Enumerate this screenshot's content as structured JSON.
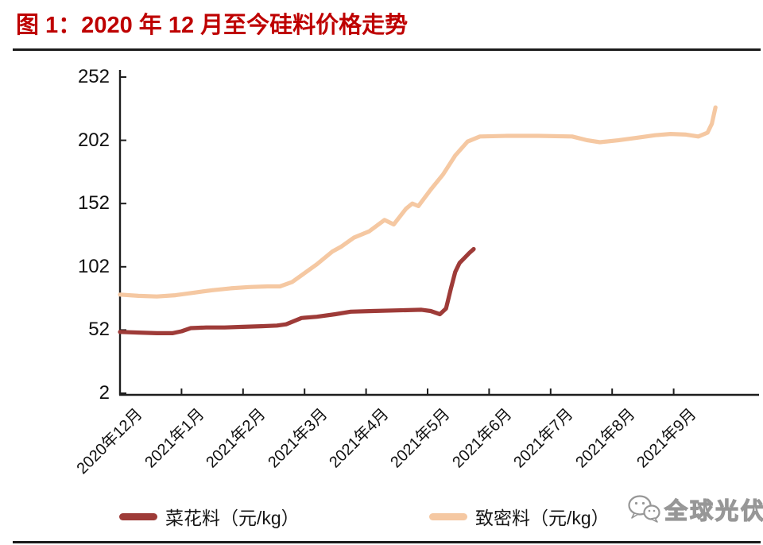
{
  "title": "图 1：2020 年 12 月至今硅料价格走势",
  "colors": {
    "title": "#BE0000",
    "axis": "#1d1d1d",
    "cauliflower_line": "#9E3B38",
    "dense_line": "#F5C8A2",
    "watermark_outline": "#979797"
  },
  "watermark": {
    "text": "全球光伏"
  },
  "chart_data": {
    "type": "line",
    "title": "2020年12月至今硅料价格走势",
    "xlabel": "",
    "ylabel": "元/kg",
    "ylim": [
      2,
      252
    ],
    "y_ticks": [
      2,
      52,
      102,
      152,
      202,
      252
    ],
    "grid": false,
    "legend_position": "bottom",
    "x_unit": "month index, 0 = 2020年12月 tick, 1 per month tick",
    "x_tick_labels": [
      "2020年12月",
      "2021年1月",
      "2021年2月",
      "2021年3月",
      "2021年4月",
      "2021年5月",
      "2021年6月",
      "2021年7月",
      "2021年8月",
      "2021年9月"
    ],
    "series": [
      {
        "name": "菜花料（元/kg）",
        "color": "#9E3B38",
        "points": [
          [
            0,
            50.5
          ],
          [
            0.3,
            50
          ],
          [
            0.6,
            49.5
          ],
          [
            0.85,
            49.5
          ],
          [
            1.0,
            51
          ],
          [
            1.15,
            53.5
          ],
          [
            1.4,
            54
          ],
          [
            1.7,
            54
          ],
          [
            2.0,
            54.5
          ],
          [
            2.3,
            55
          ],
          [
            2.55,
            55.5
          ],
          [
            2.7,
            56.5
          ],
          [
            2.95,
            61.5
          ],
          [
            3.2,
            62.5
          ],
          [
            3.5,
            64.5
          ],
          [
            3.75,
            66.5
          ],
          [
            4.1,
            67
          ],
          [
            4.5,
            67.5
          ],
          [
            4.9,
            68
          ],
          [
            5.05,
            67
          ],
          [
            5.2,
            64.5
          ],
          [
            5.3,
            69
          ],
          [
            5.38,
            85
          ],
          [
            5.45,
            98
          ],
          [
            5.52,
            105
          ],
          [
            5.6,
            109
          ],
          [
            5.68,
            113
          ],
          [
            5.75,
            116
          ]
        ]
      },
      {
        "name": "致密料（元/kg）",
        "color": "#F5C8A2",
        "points": [
          [
            0,
            80
          ],
          [
            0.3,
            79
          ],
          [
            0.6,
            78.5
          ],
          [
            0.9,
            79.5
          ],
          [
            1.2,
            81.5
          ],
          [
            1.5,
            83.5
          ],
          [
            1.8,
            85
          ],
          [
            2.1,
            86
          ],
          [
            2.4,
            86.5
          ],
          [
            2.6,
            86.5
          ],
          [
            2.8,
            90
          ],
          [
            3.0,
            97
          ],
          [
            3.2,
            104
          ],
          [
            3.45,
            114
          ],
          [
            3.6,
            118
          ],
          [
            3.8,
            125
          ],
          [
            4.05,
            130
          ],
          [
            4.3,
            139
          ],
          [
            4.45,
            135.5
          ],
          [
            4.65,
            148
          ],
          [
            4.75,
            152
          ],
          [
            4.85,
            150
          ],
          [
            5.05,
            163
          ],
          [
            5.25,
            175
          ],
          [
            5.45,
            190
          ],
          [
            5.65,
            201
          ],
          [
            5.85,
            205
          ],
          [
            6.3,
            205.5
          ],
          [
            6.8,
            205.5
          ],
          [
            7.35,
            205
          ],
          [
            7.6,
            202
          ],
          [
            7.8,
            200.5
          ],
          [
            8.1,
            202
          ],
          [
            8.4,
            204
          ],
          [
            8.7,
            206
          ],
          [
            8.95,
            207
          ],
          [
            9.2,
            206.5
          ],
          [
            9.4,
            205
          ],
          [
            9.55,
            208
          ],
          [
            9.62,
            215
          ],
          [
            9.68,
            228
          ]
        ]
      }
    ]
  }
}
